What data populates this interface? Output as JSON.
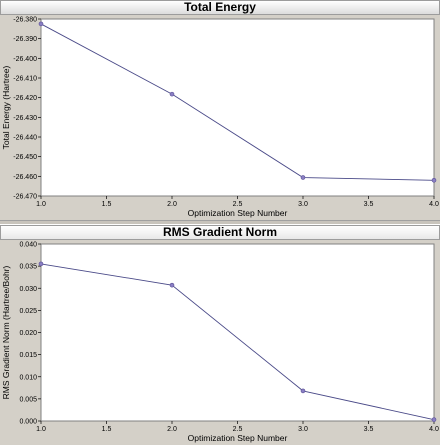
{
  "chart_data": [
    {
      "type": "line",
      "title": "Total Energy",
      "xlabel": "Optimization Step Number",
      "ylabel": "Total Energy (Hartree)",
      "x": [
        1.0,
        2.0,
        3.0,
        4.0
      ],
      "series": [
        {
          "values": [
            -26.3825,
            -26.4182,
            -26.4606,
            -26.462
          ]
        }
      ],
      "xlim": [
        1.0,
        4.0
      ],
      "ylim": [
        -26.47,
        -26.38
      ],
      "xticks": [
        "1.0",
        "1.5",
        "2.0",
        "2.5",
        "3.0",
        "3.5",
        "4.0"
      ],
      "yticks": [
        "-26.380",
        "-26.390",
        "-26.400",
        "-26.410",
        "-26.420",
        "-26.430",
        "-26.440",
        "-26.450",
        "-26.460",
        "-26.470"
      ],
      "grid": false,
      "line_color": "#4a4a88",
      "marker_color": "#8a7fc4"
    },
    {
      "type": "line",
      "title": "RMS Gradient Norm",
      "xlabel": "Optimization Step Number",
      "ylabel": "RMS Gradient Norm (Hartree/Bohr)",
      "x": [
        1.0,
        2.0,
        3.0,
        4.0
      ],
      "series": [
        {
          "values": [
            0.0355,
            0.0307,
            0.0068,
            0.0003
          ]
        }
      ],
      "xlim": [
        1.0,
        4.0
      ],
      "ylim": [
        0.0,
        0.04
      ],
      "xticks": [
        "1.0",
        "1.5",
        "2.0",
        "2.5",
        "3.0",
        "3.5",
        "4.0"
      ],
      "yticks": [
        "0.040",
        "0.035",
        "0.030",
        "0.025",
        "0.020",
        "0.015",
        "0.010",
        "0.005",
        "0.000"
      ],
      "grid": false,
      "line_color": "#4a4a88",
      "marker_color": "#8a7fc4"
    }
  ]
}
